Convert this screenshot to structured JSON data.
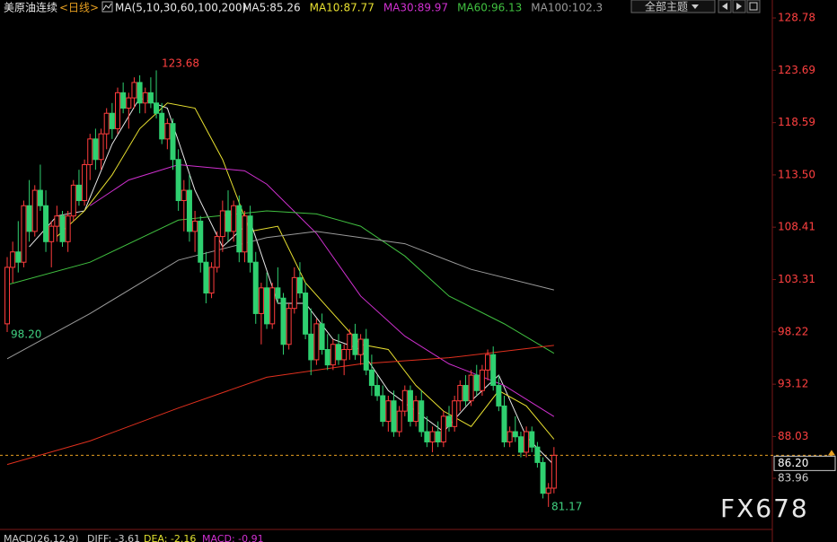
{
  "chart_data": {
    "type": "candlestick",
    "title": "美原油连续",
    "period": "<日线>",
    "indicator": "MA(5,10,30,60,100,200)",
    "theme_button": "全部主题",
    "watermark": "FX678",
    "macd_labels": [
      "MACD(26,12,9)",
      "DIFF: -3.61",
      "DEA: -2.16",
      "MACD: -0.91"
    ],
    "annotations": [
      "123.68",
      "98.20",
      "81.17"
    ],
    "ylim": [
      78.98,
      130.53
    ],
    "yticks": [
      128.78,
      123.69,
      118.59,
      {
        "value": 113.5,
        "label": "113.50"
      },
      108.41,
      103.31,
      98.22,
      93.12,
      88.03,
      83.96
    ],
    "last_price": {
      "value": 86.2,
      "label": "86.20"
    },
    "up_color": "#ff3c3c",
    "down_color": "#2fd070",
    "ohlc": [
      [
        99.0,
        105.5,
        98.2,
        104.5
      ],
      [
        104.5,
        107,
        103,
        106
      ],
      [
        106,
        109,
        104,
        105
      ],
      [
        105,
        111,
        104.5,
        110.5
      ],
      [
        110.5,
        113,
        107,
        108
      ],
      [
        108,
        112.5,
        107.5,
        112
      ],
      [
        112,
        114.5,
        110,
        110.5
      ],
      [
        110.5,
        112,
        106,
        107
      ],
      [
        107,
        109,
        104.5,
        108.5
      ],
      [
        108.5,
        110.5,
        107,
        109.5
      ],
      [
        109.5,
        110,
        106.5,
        107
      ],
      [
        107,
        110,
        106,
        109.5
      ],
      [
        109.5,
        113,
        109,
        112.5
      ],
      [
        112.5,
        114,
        110.5,
        111
      ],
      [
        111,
        115,
        110.5,
        114.5
      ],
      [
        114.5,
        117.5,
        113,
        117
      ],
      [
        117,
        118,
        114,
        115
      ],
      [
        115,
        118,
        114,
        117.5
      ],
      [
        117.5,
        120,
        116,
        119.5
      ],
      [
        119.5,
        120.5,
        117,
        118
      ],
      [
        118,
        122,
        117.5,
        121.5
      ],
      [
        121.5,
        122.5,
        119.5,
        120
      ],
      [
        120,
        121.5,
        118,
        121
      ],
      [
        121,
        123,
        120,
        122.5
      ],
      [
        122.5,
        123.2,
        119.5,
        120.5
      ],
      [
        120.5,
        122,
        119.5,
        121.5
      ],
      [
        121.5,
        123,
        120,
        120.5
      ],
      [
        120.5,
        123.68,
        119,
        119.5
      ],
      [
        119.5,
        120.5,
        116.5,
        117
      ],
      [
        117,
        119,
        116,
        118.5
      ],
      [
        118.5,
        119,
        114,
        115
      ],
      [
        115,
        116,
        110,
        111
      ],
      [
        111,
        113,
        108,
        112
      ],
      [
        112,
        113.5,
        107,
        108
      ],
      [
        108,
        110,
        106,
        109
      ],
      [
        109,
        109.5,
        104,
        105
      ],
      [
        105,
        106,
        101,
        102
      ],
      [
        102,
        105,
        101.5,
        104.5
      ],
      [
        104.5,
        108,
        104,
        107.5
      ],
      [
        107.5,
        111,
        106,
        110
      ],
      [
        110,
        112,
        107,
        108
      ],
      [
        108,
        111,
        107,
        110.5
      ],
      [
        110.5,
        111.5,
        105,
        106
      ],
      [
        106,
        110,
        105,
        109.5
      ],
      [
        109.5,
        110.5,
        104,
        105
      ],
      [
        105,
        106,
        99,
        100
      ],
      [
        100,
        103,
        97,
        102.5
      ],
      [
        102.5,
        104,
        98.5,
        99
      ],
      [
        99,
        103,
        98.5,
        102.5
      ],
      [
        102.5,
        104.5,
        101,
        101.5
      ],
      [
        101.5,
        102,
        96,
        97
      ],
      [
        97,
        101,
        96.5,
        100.5
      ],
      [
        100.5,
        104.5,
        100,
        103.5
      ],
      [
        103.5,
        105,
        101.5,
        102
      ],
      [
        102,
        103,
        97.5,
        98
      ],
      [
        98,
        100.5,
        94,
        95.5
      ],
      [
        95.5,
        99.5,
        95,
        99
      ],
      [
        99,
        100,
        96,
        96.5
      ],
      [
        96.5,
        98,
        94.5,
        95
      ],
      [
        95,
        97.5,
        94.5,
        97
      ],
      [
        97,
        98,
        95,
        95.5
      ],
      [
        95.5,
        97,
        94,
        96.5
      ],
      [
        96.5,
        98.5,
        95.5,
        98
      ],
      [
        98,
        99,
        95.5,
        96
      ],
      [
        96,
        98,
        95,
        97.5
      ],
      [
        97.5,
        98.5,
        94,
        94.5
      ],
      [
        94.5,
        96,
        92,
        93
      ],
      [
        93,
        94,
        91.5,
        92
      ],
      [
        92,
        93,
        89,
        89.5
      ],
      [
        89.5,
        92,
        88.5,
        91.5
      ],
      [
        91.5,
        92.5,
        88,
        88.5
      ],
      [
        88.5,
        91,
        88,
        90.5
      ],
      [
        90.5,
        93,
        90,
        92.5
      ],
      [
        92.5,
        93,
        89,
        89.5
      ],
      [
        89.5,
        92,
        89,
        91.5
      ],
      [
        91.5,
        92.5,
        88,
        88.5
      ],
      [
        88.5,
        90,
        87,
        87.5
      ],
      [
        87.5,
        89,
        86.5,
        88.5
      ],
      [
        88.5,
        89.5,
        87,
        87.5
      ],
      [
        87.5,
        90.5,
        87,
        90
      ],
      [
        90,
        91,
        88.5,
        89
      ],
      [
        89,
        92,
        88.5,
        91.5
      ],
      [
        91.5,
        93.5,
        90.5,
        93
      ],
      [
        93,
        94,
        91,
        91.5
      ],
      [
        91.5,
        94.5,
        91,
        94
      ],
      [
        94,
        95,
        92,
        92.5
      ],
      [
        92.5,
        95,
        92,
        94.5
      ],
      [
        94.5,
        96.5,
        93.5,
        96
      ],
      [
        96,
        96.8,
        92.5,
        93
      ],
      [
        93,
        94,
        90.5,
        91
      ],
      [
        91,
        92,
        87,
        87.5
      ],
      [
        87.5,
        89,
        87,
        88.5
      ],
      [
        88.5,
        90,
        87.5,
        88
      ],
      [
        88,
        88.5,
        86,
        86.5
      ],
      [
        86.5,
        89,
        86,
        88.5
      ],
      [
        88.5,
        89,
        86.5,
        87
      ],
      [
        87,
        87.5,
        85,
        85.5
      ],
      [
        85.5,
        86,
        82,
        82.5
      ],
      [
        82.5,
        83.5,
        81.17,
        83
      ],
      [
        83,
        87,
        82.5,
        86.2
      ]
    ],
    "series": [
      {
        "name": "MA5:85.26",
        "color": "#e8e8e8",
        "x": [
          4,
          9,
          14,
          19,
          24,
          29,
          34,
          39,
          44,
          49,
          54,
          59,
          64,
          69,
          74,
          79,
          84,
          89,
          94,
          99
        ],
        "values": [
          106.5,
          109.5,
          110,
          116.5,
          121,
          120,
          112,
          106.5,
          109,
          101,
          101,
          97.5,
          96.5,
          92.5,
          90.5,
          88.5,
          91.5,
          94,
          88,
          85.26
        ]
      },
      {
        "name": "MA10:87.77",
        "color": "#e8e030",
        "x": [
          9,
          14,
          19,
          24,
          29,
          34,
          39,
          44,
          49,
          54,
          59,
          64,
          69,
          74,
          79,
          84,
          89,
          94,
          99
        ],
        "values": [
          107.5,
          110,
          113.5,
          118,
          120.5,
          120,
          115,
          108,
          108.5,
          103,
          100,
          97,
          96.5,
          93,
          90.5,
          89,
          92.5,
          91,
          87.77
        ]
      },
      {
        "name": "MA30:89.97",
        "color": "#d030d0",
        "x": [
          15,
          22,
          31,
          43,
          47,
          56,
          64,
          72,
          80,
          90,
          99
        ],
        "values": [
          110.5,
          113,
          114.5,
          113.9,
          112.6,
          107.8,
          101.7,
          97.8,
          95.1,
          93,
          89.97
        ]
      },
      {
        "name": "MA60:96.13",
        "color": "#40c040",
        "x": [
          0,
          15,
          31,
          47,
          56,
          64,
          72,
          80,
          90,
          99
        ],
        "values": [
          102.8,
          105,
          109.1,
          110,
          109.7,
          108.5,
          105.6,
          101.7,
          99,
          96.13
        ]
      },
      {
        "name": "MA100:102.3",
        "color": "#9a9a9a",
        "x": [
          0,
          15,
          31,
          47,
          56,
          72,
          84,
          99
        ],
        "values": [
          95.6,
          100,
          105.2,
          107.4,
          108,
          106.8,
          104.3,
          102.3
        ]
      },
      {
        "color": "#e0301e",
        "x": [
          0,
          15,
          31,
          47,
          64,
          80,
          99
        ],
        "values": [
          85.3,
          87.6,
          90.8,
          93.8,
          95.1,
          95.7,
          96.9
        ]
      }
    ]
  }
}
